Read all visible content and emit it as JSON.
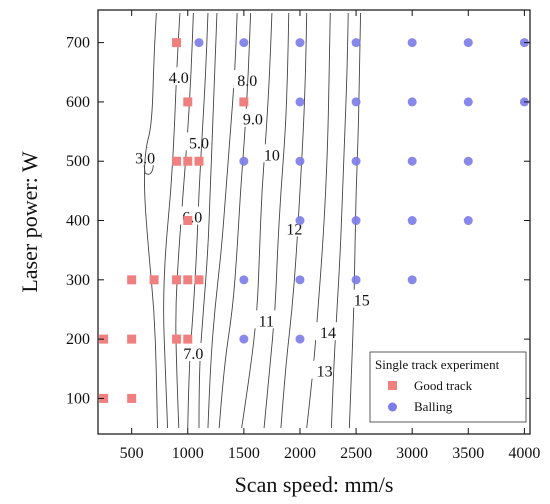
{
  "chart_data": {
    "type": "scatter",
    "xlabel": "Scan speed: mm/s",
    "ylabel": "Laser power: W",
    "xlim": [
      200,
      4050
    ],
    "ylim": [
      40,
      755
    ],
    "xticks": [
      500,
      1000,
      1500,
      2000,
      2500,
      3000,
      3500,
      4000
    ],
    "yticks": [
      100,
      200,
      300,
      400,
      500,
      600,
      700
    ],
    "grid": false,
    "legend": {
      "title": "Single track experiment",
      "placement": "bottom-right"
    },
    "series": [
      {
        "name": "Good track",
        "marker": "square",
        "color": "#f08080",
        "points": [
          [
            250,
            100
          ],
          [
            500,
            100
          ],
          [
            250,
            200
          ],
          [
            500,
            200
          ],
          [
            900,
            200
          ],
          [
            1000,
            200
          ],
          [
            500,
            300
          ],
          [
            700,
            300
          ],
          [
            900,
            300
          ],
          [
            1000,
            300
          ],
          [
            1100,
            300
          ],
          [
            1000,
            400
          ],
          [
            900,
            500
          ],
          [
            1000,
            500
          ],
          [
            1100,
            500
          ],
          [
            1000,
            600
          ],
          [
            1500,
            600
          ],
          [
            900,
            700
          ]
        ]
      },
      {
        "name": "Balling",
        "marker": "circle",
        "color": "#7b7be8",
        "points": [
          [
            1500,
            200
          ],
          [
            2000,
            200
          ],
          [
            1500,
            300
          ],
          [
            2000,
            300
          ],
          [
            2500,
            300
          ],
          [
            3000,
            300
          ],
          [
            2000,
            400
          ],
          [
            2500,
            400
          ],
          [
            3000,
            400
          ],
          [
            3500,
            400
          ],
          [
            1500,
            500
          ],
          [
            2000,
            500
          ],
          [
            2500,
            500
          ],
          [
            3000,
            500
          ],
          [
            3500,
            500
          ],
          [
            2000,
            600
          ],
          [
            2500,
            600
          ],
          [
            3000,
            600
          ],
          [
            3500,
            600
          ],
          [
            4000,
            600
          ],
          [
            1100,
            700
          ],
          [
            1500,
            700
          ],
          [
            2000,
            700
          ],
          [
            2500,
            700
          ],
          [
            3000,
            700
          ],
          [
            3500,
            700
          ],
          [
            4000,
            700
          ]
        ]
      }
    ],
    "contours": [
      {
        "label": "3.0",
        "label_at": [
          620,
          505
        ],
        "closed": true,
        "points": [
          [
            620,
            480
          ],
          [
            660,
            475
          ],
          [
            700,
            490
          ],
          [
            680,
            520
          ],
          [
            630,
            525
          ],
          [
            600,
            510
          ]
        ]
      },
      {
        "label": "",
        "points": [
          [
            730,
            50
          ],
          [
            720,
            150
          ],
          [
            700,
            250
          ],
          [
            650,
            350
          ],
          [
            610,
            450
          ],
          [
            620,
            520
          ],
          [
            680,
            560
          ],
          [
            700,
            680
          ],
          [
            720,
            750
          ]
        ]
      },
      {
        "label": "4.0",
        "label_at": [
          920,
          640
        ],
        "points": [
          [
            820,
            50
          ],
          [
            800,
            150
          ],
          [
            780,
            250
          ],
          [
            800,
            350
          ],
          [
            850,
            450
          ],
          [
            880,
            550
          ],
          [
            900,
            650
          ],
          [
            930,
            750
          ]
        ]
      },
      {
        "label": "5.0",
        "label_at": [
          1100,
          530
        ],
        "points": [
          [
            920,
            50
          ],
          [
            900,
            150
          ],
          [
            890,
            250
          ],
          [
            920,
            350
          ],
          [
            960,
            450
          ],
          [
            1000,
            550
          ],
          [
            1030,
            650
          ],
          [
            1050,
            750
          ]
        ]
      },
      {
        "label": "6.0",
        "label_at": [
          1040,
          405
        ],
        "points": [
          [
            1000,
            50
          ],
          [
            1010,
            150
          ],
          [
            1050,
            250
          ],
          [
            1080,
            350
          ],
          [
            1100,
            450
          ],
          [
            1130,
            550
          ],
          [
            1160,
            650
          ],
          [
            1180,
            750
          ]
        ]
      },
      {
        "label": "7.0",
        "label_at": [
          1050,
          175
        ],
        "points": [
          [
            1100,
            50
          ],
          [
            1100,
            150
          ],
          [
            1140,
            250
          ],
          [
            1180,
            350
          ],
          [
            1200,
            450
          ],
          [
            1220,
            550
          ],
          [
            1240,
            650
          ],
          [
            1260,
            750
          ]
        ]
      },
      {
        "label": "8.0",
        "label_at": [
          1530,
          635
        ],
        "points": [
          [
            1180,
            50
          ],
          [
            1200,
            150
          ],
          [
            1240,
            250
          ],
          [
            1300,
            350
          ],
          [
            1340,
            450
          ],
          [
            1380,
            550
          ],
          [
            1420,
            650
          ],
          [
            1440,
            750
          ]
        ]
      },
      {
        "label": "9.0",
        "label_at": [
          1580,
          570
        ],
        "points": [
          [
            1280,
            50
          ],
          [
            1320,
            150
          ],
          [
            1400,
            250
          ],
          [
            1440,
            350
          ],
          [
            1470,
            450
          ],
          [
            1510,
            550
          ],
          [
            1540,
            650
          ],
          [
            1560,
            750
          ]
        ]
      },
      {
        "label": "10",
        "label_at": [
          1750,
          510
        ],
        "points": [
          [
            1480,
            50
          ],
          [
            1560,
            150
          ],
          [
            1620,
            250
          ],
          [
            1640,
            350
          ],
          [
            1660,
            450
          ],
          [
            1700,
            550
          ],
          [
            1730,
            650
          ],
          [
            1750,
            750
          ]
        ]
      },
      {
        "label": "11",
        "label_at": [
          1700,
          230
        ],
        "points": [
          [
            1680,
            50
          ],
          [
            1730,
            150
          ],
          [
            1780,
            250
          ],
          [
            1800,
            350
          ],
          [
            1830,
            450
          ],
          [
            1870,
            550
          ],
          [
            1890,
            650
          ],
          [
            1900,
            750
          ]
        ]
      },
      {
        "label": "12",
        "label_at": [
          1950,
          385
        ],
        "points": [
          [
            1830,
            50
          ],
          [
            1870,
            150
          ],
          [
            1930,
            250
          ],
          [
            1970,
            350
          ],
          [
            2000,
            450
          ],
          [
            2030,
            550
          ],
          [
            2050,
            650
          ],
          [
            2060,
            750
          ]
        ]
      },
      {
        "label": "13",
        "label_at": [
          2220,
          145
        ],
        "points": [
          [
            2060,
            50
          ],
          [
            2120,
            150
          ],
          [
            2160,
            250
          ],
          [
            2200,
            350
          ],
          [
            2230,
            450
          ],
          [
            2250,
            550
          ],
          [
            2260,
            650
          ],
          [
            2270,
            750
          ]
        ]
      },
      {
        "label": "14",
        "label_at": [
          2250,
          210
        ],
        "points": [
          [
            2280,
            50
          ],
          [
            2300,
            150
          ],
          [
            2330,
            250
          ],
          [
            2360,
            350
          ],
          [
            2380,
            450
          ],
          [
            2400,
            550
          ],
          [
            2420,
            650
          ],
          [
            2430,
            750
          ]
        ]
      },
      {
        "label": "15",
        "label_at": [
          2550,
          265
        ],
        "points": [
          [
            2440,
            50
          ],
          [
            2460,
            150
          ],
          [
            2480,
            250
          ],
          [
            2490,
            350
          ],
          [
            2500,
            450
          ],
          [
            2520,
            550
          ],
          [
            2530,
            650
          ],
          [
            2540,
            750
          ]
        ]
      }
    ]
  }
}
